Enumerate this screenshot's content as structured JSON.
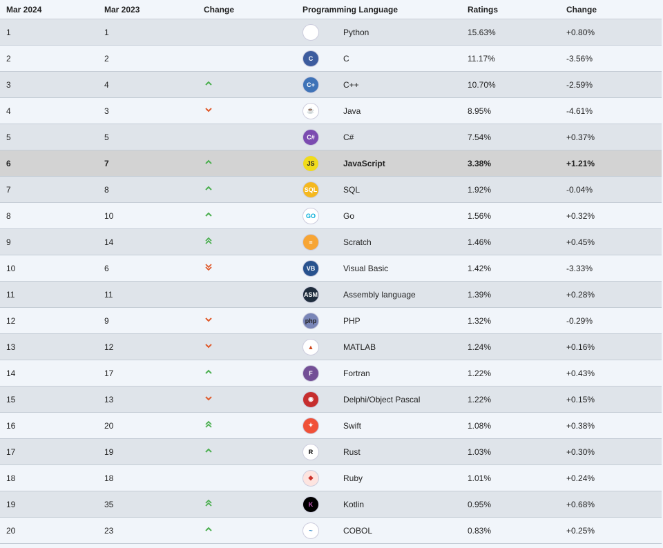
{
  "table": {
    "headers": [
      "Mar 2024",
      "Mar 2023",
      "Change",
      "Programming Language",
      "Ratings",
      "Change"
    ],
    "rows": [
      {
        "rank": "1",
        "prev": "1",
        "trend": "none",
        "lang": "Python",
        "rating": "15.63%",
        "change": "+0.80%",
        "logo": "python-icon",
        "logo_bg": "#ffffff",
        "logo_fg": "#3b77a8",
        "logo_text": ""
      },
      {
        "rank": "2",
        "prev": "2",
        "trend": "none",
        "lang": "C",
        "rating": "11.17%",
        "change": "-3.56%",
        "logo": "c-icon",
        "logo_bg": "#3d5c9e",
        "logo_fg": "#ffffff",
        "logo_text": "C"
      },
      {
        "rank": "3",
        "prev": "4",
        "trend": "up",
        "lang": "C++",
        "rating": "10.70%",
        "change": "-2.59%",
        "logo": "cpp-icon",
        "logo_bg": "#3f73b7",
        "logo_fg": "#ffffff",
        "logo_text": "C+"
      },
      {
        "rank": "4",
        "prev": "3",
        "trend": "down",
        "lang": "Java",
        "rating": "8.95%",
        "change": "-4.61%",
        "logo": "java-icon",
        "logo_bg": "#ffffff",
        "logo_fg": "#e76f00",
        "logo_text": "☕"
      },
      {
        "rank": "5",
        "prev": "5",
        "trend": "none",
        "lang": "C#",
        "rating": "7.54%",
        "change": "+0.37%",
        "logo": "csharp-icon",
        "logo_bg": "#7b4bb0",
        "logo_fg": "#ffffff",
        "logo_text": "C#"
      },
      {
        "rank": "6",
        "prev": "7",
        "trend": "up",
        "lang": "JavaScript",
        "rating": "3.38%",
        "change": "+1.21%",
        "logo": "javascript-icon",
        "logo_bg": "#f0db1b",
        "logo_fg": "#222222",
        "logo_text": "JS",
        "highlight": true
      },
      {
        "rank": "7",
        "prev": "8",
        "trend": "up",
        "lang": "SQL",
        "rating": "1.92%",
        "change": "-0.04%",
        "logo": "sql-icon",
        "logo_bg": "#f5b81e",
        "logo_fg": "#ffffff",
        "logo_text": "SQL"
      },
      {
        "rank": "8",
        "prev": "10",
        "trend": "up",
        "lang": "Go",
        "rating": "1.56%",
        "change": "+0.32%",
        "logo": "go-icon",
        "logo_bg": "#ffffff",
        "logo_fg": "#00add8",
        "logo_text": "GO"
      },
      {
        "rank": "9",
        "prev": "14",
        "trend": "up2",
        "lang": "Scratch",
        "rating": "1.46%",
        "change": "+0.45%",
        "logo": "scratch-icon",
        "logo_bg": "#f7a535",
        "logo_fg": "#ffffff",
        "logo_text": "≡"
      },
      {
        "rank": "10",
        "prev": "6",
        "trend": "down2",
        "lang": "Visual Basic",
        "rating": "1.42%",
        "change": "-3.33%",
        "logo": "visual-basic-icon",
        "logo_bg": "#28528e",
        "logo_fg": "#ffffff",
        "logo_text": "VB"
      },
      {
        "rank": "11",
        "prev": "11",
        "trend": "none",
        "lang": "Assembly language",
        "rating": "1.39%",
        "change": "+0.28%",
        "logo": "assembly-icon",
        "logo_bg": "#1f2d3d",
        "logo_fg": "#ffffff",
        "logo_text": "ASM"
      },
      {
        "rank": "12",
        "prev": "9",
        "trend": "down",
        "lang": "PHP",
        "rating": "1.32%",
        "change": "-0.29%",
        "logo": "php-icon",
        "logo_bg": "#7a86b8",
        "logo_fg": "#222222",
        "logo_text": "php"
      },
      {
        "rank": "13",
        "prev": "12",
        "trend": "down",
        "lang": "MATLAB",
        "rating": "1.24%",
        "change": "+0.16%",
        "logo": "matlab-icon",
        "logo_bg": "#ffffff",
        "logo_fg": "#d0481d",
        "logo_text": "▲"
      },
      {
        "rank": "14",
        "prev": "17",
        "trend": "up",
        "lang": "Fortran",
        "rating": "1.22%",
        "change": "+0.43%",
        "logo": "fortran-icon",
        "logo_bg": "#734f96",
        "logo_fg": "#ffffff",
        "logo_text": "F"
      },
      {
        "rank": "15",
        "prev": "13",
        "trend": "down",
        "lang": "Delphi/Object Pascal",
        "rating": "1.22%",
        "change": "+0.15%",
        "logo": "delphi-icon",
        "logo_bg": "#c62e2e",
        "logo_fg": "#ffffff",
        "logo_text": "◉"
      },
      {
        "rank": "16",
        "prev": "20",
        "trend": "up2",
        "lang": "Swift",
        "rating": "1.08%",
        "change": "+0.38%",
        "logo": "swift-icon",
        "logo_bg": "#f05138",
        "logo_fg": "#ffffff",
        "logo_text": "✦"
      },
      {
        "rank": "17",
        "prev": "19",
        "trend": "up",
        "lang": "Rust",
        "rating": "1.03%",
        "change": "+0.30%",
        "logo": "rust-icon",
        "logo_bg": "#ffffff",
        "logo_fg": "#000000",
        "logo_text": "R"
      },
      {
        "rank": "18",
        "prev": "18",
        "trend": "none",
        "lang": "Ruby",
        "rating": "1.01%",
        "change": "+0.24%",
        "logo": "ruby-icon",
        "logo_bg": "#fde4e0",
        "logo_fg": "#cc342d",
        "logo_text": "◆"
      },
      {
        "rank": "19",
        "prev": "35",
        "trend": "up2",
        "lang": "Kotlin",
        "rating": "0.95%",
        "change": "+0.68%",
        "logo": "kotlin-icon",
        "logo_bg": "#000000",
        "logo_fg": "#c757bc",
        "logo_text": "K"
      },
      {
        "rank": "20",
        "prev": "23",
        "trend": "up",
        "lang": "COBOL",
        "rating": "0.83%",
        "change": "+0.25%",
        "logo": "cobol-icon",
        "logo_bg": "#ffffff",
        "logo_fg": "#2a86c4",
        "logo_text": "~"
      }
    ]
  },
  "colors": {
    "up": "#4caf50",
    "down": "#e05a2b"
  }
}
